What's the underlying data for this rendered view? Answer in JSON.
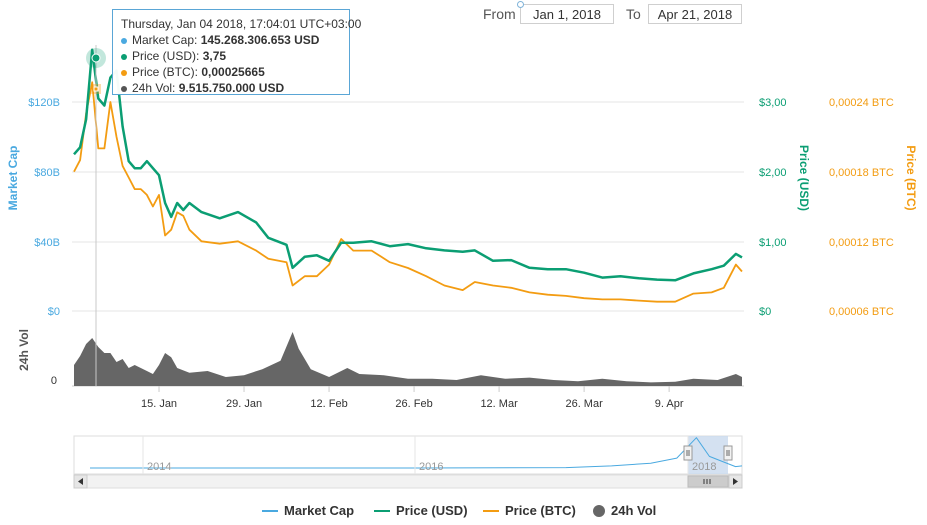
{
  "range": {
    "from_label": "From",
    "from_value": "Jan 1, 2018",
    "to_label": "To",
    "to_value": "Apr 21, 2018"
  },
  "tooltip": {
    "header": "Thursday, Jan 04 2018, 17:04:01 UTC+03:00",
    "rows": [
      {
        "label": "Market Cap:",
        "value": "145.268.306.653 USD",
        "color": "#4aa9e0"
      },
      {
        "label": "Price (USD):",
        "value": "3,75",
        "color": "#0b9e73"
      },
      {
        "label": "Price (BTC):",
        "value": "0,00025665",
        "color": "#f39c12"
      },
      {
        "label": "24h Vol:",
        "value": "9.515.750.000 USD",
        "color": "#555555"
      }
    ]
  },
  "colors": {
    "market_cap": "#4aa9e0",
    "price_usd": "#0b9e73",
    "price_btc": "#f39c12",
    "volume": "#666666",
    "navigator": "#4aa9e0",
    "navigator_selection": "#c9d9ee"
  },
  "chart_data": {
    "type": "line",
    "x_range": [
      "2018-01-01",
      "2018-04-21"
    ],
    "x_ticks": [
      {
        "date": "2018-01-15",
        "label": "15. Jan"
      },
      {
        "date": "2018-01-29",
        "label": "29. Jan"
      },
      {
        "date": "2018-02-12",
        "label": "12. Feb"
      },
      {
        "date": "2018-02-26",
        "label": "26. Feb"
      },
      {
        "date": "2018-03-12",
        "label": "12. Mar"
      },
      {
        "date": "2018-03-26",
        "label": "26. Mar"
      },
      {
        "date": "2018-04-09",
        "label": "9. Apr"
      }
    ],
    "axes": {
      "market_cap": {
        "title": "Market Cap",
        "ticks": [
          "$0",
          "$40B",
          "$80B",
          "$120B"
        ],
        "ylim": [
          0,
          145
        ]
      },
      "price_usd": {
        "title": "Price (USD)",
        "ticks": [
          "$0",
          "$1,00",
          "$2,00",
          "$3,00"
        ],
        "ylim": [
          0,
          3.6
        ]
      },
      "price_btc": {
        "title": "Price (BTC)",
        "ticks": [
          "0,00006 BTC",
          "0,00012 BTC",
          "0,00018 BTC",
          "0,00024 BTC"
        ],
        "ylim": [
          6e-05,
          0.00027
        ]
      },
      "volume": {
        "title": "24h Vol",
        "ticks": [
          "0"
        ]
      }
    },
    "series": [
      {
        "name": "Price (USD)",
        "points": [
          [
            "2018-01-01",
            2.25
          ],
          [
            "2018-01-02",
            2.35
          ],
          [
            "2018-01-03",
            2.75
          ],
          [
            "2018-01-04",
            3.75
          ],
          [
            "2018-01-05",
            3.05
          ],
          [
            "2018-01-06",
            2.95
          ],
          [
            "2018-01-07",
            3.35
          ],
          [
            "2018-01-08",
            3.45
          ],
          [
            "2018-01-09",
            2.65
          ],
          [
            "2018-01-10",
            2.15
          ],
          [
            "2018-01-11",
            2.05
          ],
          [
            "2018-01-12",
            2.05
          ],
          [
            "2018-01-13",
            2.15
          ],
          [
            "2018-01-14",
            2.05
          ],
          [
            "2018-01-15",
            1.95
          ],
          [
            "2018-01-16",
            1.55
          ],
          [
            "2018-01-17",
            1.35
          ],
          [
            "2018-01-18",
            1.55
          ],
          [
            "2018-01-19",
            1.45
          ],
          [
            "2018-01-20",
            1.55
          ],
          [
            "2018-01-22",
            1.42
          ],
          [
            "2018-01-25",
            1.33
          ],
          [
            "2018-01-28",
            1.42
          ],
          [
            "2018-01-31",
            1.27
          ],
          [
            "2018-02-02",
            1.05
          ],
          [
            "2018-02-05",
            0.95
          ],
          [
            "2018-02-06",
            0.62
          ],
          [
            "2018-02-08",
            0.78
          ],
          [
            "2018-02-10",
            0.8
          ],
          [
            "2018-02-12",
            0.72
          ],
          [
            "2018-02-14",
            0.98
          ],
          [
            "2018-02-16",
            0.98
          ],
          [
            "2018-02-19",
            1.0
          ],
          [
            "2018-02-22",
            0.93
          ],
          [
            "2018-02-25",
            0.96
          ],
          [
            "2018-02-28",
            0.9
          ],
          [
            "2018-03-03",
            0.87
          ],
          [
            "2018-03-06",
            0.85
          ],
          [
            "2018-03-08",
            0.87
          ],
          [
            "2018-03-11",
            0.72
          ],
          [
            "2018-03-14",
            0.73
          ],
          [
            "2018-03-17",
            0.62
          ],
          [
            "2018-03-20",
            0.6
          ],
          [
            "2018-03-23",
            0.6
          ],
          [
            "2018-03-26",
            0.55
          ],
          [
            "2018-03-29",
            0.48
          ],
          [
            "2018-04-01",
            0.5
          ],
          [
            "2018-04-04",
            0.47
          ],
          [
            "2018-04-07",
            0.45
          ],
          [
            "2018-04-10",
            0.44
          ],
          [
            "2018-04-13",
            0.54
          ],
          [
            "2018-04-16",
            0.6
          ],
          [
            "2018-04-18",
            0.65
          ],
          [
            "2018-04-20",
            0.82
          ],
          [
            "2018-04-21",
            0.77
          ]
        ]
      },
      {
        "name": "Price (BTC)",
        "points": [
          [
            "2018-01-01",
            0.00018
          ],
          [
            "2018-01-02",
            0.00019
          ],
          [
            "2018-01-03",
            0.00023
          ],
          [
            "2018-01-04",
            0.000257
          ],
          [
            "2018-01-05",
            0.0002
          ],
          [
            "2018-01-06",
            0.0002
          ],
          [
            "2018-01-07",
            0.00024
          ],
          [
            "2018-01-08",
            0.00021
          ],
          [
            "2018-01-09",
            0.000185
          ],
          [
            "2018-01-10",
            0.000175
          ],
          [
            "2018-01-11",
            0.000165
          ],
          [
            "2018-01-12",
            0.000165
          ],
          [
            "2018-01-13",
            0.00016
          ],
          [
            "2018-01-14",
            0.00015
          ],
          [
            "2018-01-15",
            0.00016
          ],
          [
            "2018-01-16",
            0.000125
          ],
          [
            "2018-01-17",
            0.00013
          ],
          [
            "2018-01-18",
            0.000145
          ],
          [
            "2018-01-19",
            0.000142
          ],
          [
            "2018-01-20",
            0.00013
          ],
          [
            "2018-01-22",
            0.00012
          ],
          [
            "2018-01-25",
            0.000118
          ],
          [
            "2018-01-28",
            0.00012
          ],
          [
            "2018-01-31",
            0.000112
          ],
          [
            "2018-02-02",
            0.000105
          ],
          [
            "2018-02-05",
            0.000102
          ],
          [
            "2018-02-06",
            8.2e-05
          ],
          [
            "2018-02-08",
            9e-05
          ],
          [
            "2018-02-10",
            9e-05
          ],
          [
            "2018-02-12",
            0.0001
          ],
          [
            "2018-02-14",
            0.000122
          ],
          [
            "2018-02-16",
            0.000112
          ],
          [
            "2018-02-19",
            0.000112
          ],
          [
            "2018-02-22",
            0.000102
          ],
          [
            "2018-02-25",
            9.7e-05
          ],
          [
            "2018-02-28",
            9e-05
          ],
          [
            "2018-03-03",
            8.2e-05
          ],
          [
            "2018-03-06",
            7.8e-05
          ],
          [
            "2018-03-08",
            8.5e-05
          ],
          [
            "2018-03-11",
            8.2e-05
          ],
          [
            "2018-03-14",
            8e-05
          ],
          [
            "2018-03-17",
            7.6e-05
          ],
          [
            "2018-03-20",
            7.4e-05
          ],
          [
            "2018-03-23",
            7.3e-05
          ],
          [
            "2018-03-26",
            7.1e-05
          ],
          [
            "2018-03-29",
            7e-05
          ],
          [
            "2018-04-01",
            7e-05
          ],
          [
            "2018-04-04",
            6.9e-05
          ],
          [
            "2018-04-07",
            6.8e-05
          ],
          [
            "2018-04-10",
            6.8e-05
          ],
          [
            "2018-04-13",
            7.5e-05
          ],
          [
            "2018-04-16",
            7.6e-05
          ],
          [
            "2018-04-18",
            8e-05
          ],
          [
            "2018-04-20",
            0.0001
          ],
          [
            "2018-04-21",
            9.4e-05
          ]
        ]
      },
      {
        "name": "24h Vol",
        "points": [
          [
            "2018-01-01",
            0.35
          ],
          [
            "2018-01-02",
            0.5
          ],
          [
            "2018-01-03",
            0.7
          ],
          [
            "2018-01-04",
            0.8
          ],
          [
            "2018-01-05",
            0.65
          ],
          [
            "2018-01-06",
            0.55
          ],
          [
            "2018-01-07",
            0.55
          ],
          [
            "2018-01-08",
            0.4
          ],
          [
            "2018-01-09",
            0.45
          ],
          [
            "2018-01-10",
            0.3
          ],
          [
            "2018-01-11",
            0.35
          ],
          [
            "2018-01-12",
            0.3
          ],
          [
            "2018-01-13",
            0.25
          ],
          [
            "2018-01-14",
            0.2
          ],
          [
            "2018-01-15",
            0.35
          ],
          [
            "2018-01-16",
            0.55
          ],
          [
            "2018-01-17",
            0.48
          ],
          [
            "2018-01-18",
            0.3
          ],
          [
            "2018-01-20",
            0.22
          ],
          [
            "2018-01-23",
            0.25
          ],
          [
            "2018-01-26",
            0.15
          ],
          [
            "2018-01-29",
            0.18
          ],
          [
            "2018-02-01",
            0.28
          ],
          [
            "2018-02-04",
            0.42
          ],
          [
            "2018-02-06",
            0.9
          ],
          [
            "2018-02-07",
            0.62
          ],
          [
            "2018-02-09",
            0.28
          ],
          [
            "2018-02-12",
            0.15
          ],
          [
            "2018-02-15",
            0.3
          ],
          [
            "2018-02-17",
            0.2
          ],
          [
            "2018-02-21",
            0.18
          ],
          [
            "2018-02-25",
            0.12
          ],
          [
            "2018-03-01",
            0.12
          ],
          [
            "2018-03-05",
            0.1
          ],
          [
            "2018-03-09",
            0.18
          ],
          [
            "2018-03-13",
            0.12
          ],
          [
            "2018-03-17",
            0.14
          ],
          [
            "2018-03-21",
            0.1
          ],
          [
            "2018-03-25",
            0.08
          ],
          [
            "2018-03-29",
            0.12
          ],
          [
            "2018-04-02",
            0.08
          ],
          [
            "2018-04-06",
            0.06
          ],
          [
            "2018-04-10",
            0.07
          ],
          [
            "2018-04-13",
            0.12
          ],
          [
            "2018-04-17",
            0.1
          ],
          [
            "2018-04-20",
            0.2
          ],
          [
            "2018-04-21",
            0.15
          ]
        ]
      }
    ],
    "navigator": {
      "labels": [
        "2014",
        "2016",
        "2018"
      ],
      "series": [
        [
          0,
          0.06
        ],
        [
          0.5,
          0.06
        ],
        [
          0.73,
          0.07
        ],
        [
          0.8,
          0.12
        ],
        [
          0.86,
          0.2
        ],
        [
          0.9,
          0.35
        ],
        [
          0.93,
          0.95
        ],
        [
          0.95,
          0.4
        ],
        [
          0.97,
          0.25
        ],
        [
          0.99,
          0.1
        ],
        [
          1.0,
          0.12
        ]
      ],
      "selection": [
        0.925,
        1.0
      ]
    }
  },
  "legend": [
    {
      "label": "Market Cap",
      "icon": "line-icon",
      "color": "#4aa9e0"
    },
    {
      "label": "Price (USD)",
      "icon": "line-icon",
      "color": "#0b9e73"
    },
    {
      "label": "Price (BTC)",
      "icon": "line-icon",
      "color": "#f39c12"
    },
    {
      "label": "24h Vol",
      "icon": "circle-icon",
      "color": "#666666"
    }
  ]
}
